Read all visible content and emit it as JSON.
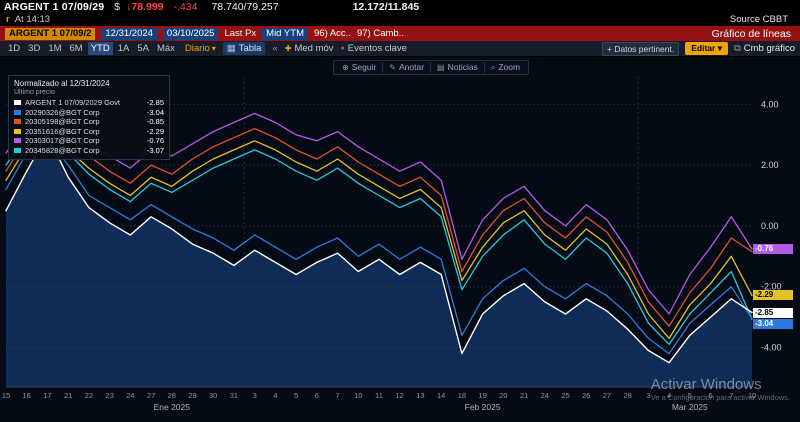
{
  "quote_bar": {
    "security": "ARGENT 1 07/09/29",
    "currency": "$",
    "arrow": "↓",
    "last_price": "78.999",
    "change": "-.434",
    "bid_ask": "78.740/79.257",
    "yield_bid_ask": "12.172/11.845",
    "delay_badge": "r",
    "as_of": "At 14:13",
    "source": "Source CBBT"
  },
  "red_bar": {
    "security_input": "ARGENT 1 07/09/2",
    "date_from": "12/31/2024",
    "date_to": "03/10/2025",
    "px_label": "Last Px",
    "field": "Mid YTM",
    "action_96": "96) Acc..",
    "action_97": "97) Camb..",
    "screen_title": "Gráfico de líneas"
  },
  "toolbar": {
    "tabs": [
      "1D",
      "3D",
      "1M",
      "6M",
      "YTD",
      "1A",
      "5A",
      "Máx"
    ],
    "active_tab": "YTD",
    "period": "Diario",
    "table_label": "Tabla",
    "collapse": "«",
    "mov_avg": "Med móv",
    "key_events": "Eventos clave",
    "related_data": "+ Datos pertinent.",
    "edit_button": "Editar",
    "change_chart": "Cmb gráfico"
  },
  "chart_tools": {
    "items": [
      {
        "icon": "⊕",
        "label": "Seguir"
      },
      {
        "icon": "✎",
        "label": "Anotar"
      },
      {
        "icon": "▤",
        "label": "Noticias"
      },
      {
        "icon": "⌕",
        "label": "Zoom"
      }
    ]
  },
  "legend": {
    "title": "Normalizado al 12/31/2024",
    "subtitle": "Último precio"
  },
  "watermark": {
    "line1": "Activar Windows",
    "line2": "Ve a Configuración para activar Windows."
  },
  "chart_data": {
    "type": "line",
    "title": "Normalizado al 12/31/2024",
    "xlabel": "",
    "ylabel": "",
    "ylim": [
      -5.3,
      4.7
    ],
    "yticks": [
      4,
      2,
      0,
      -2,
      -4
    ],
    "grid": "dotted-horizontal",
    "legend_position": "top-left",
    "x": [
      "15",
      "16",
      "17",
      "21",
      "22",
      "23",
      "24",
      "27",
      "28",
      "29",
      "30",
      "31",
      "3",
      "4",
      "5",
      "6",
      "7",
      "10",
      "11",
      "12",
      "13",
      "14",
      "18",
      "19",
      "20",
      "21",
      "24",
      "25",
      "26",
      "27",
      "28",
      "3",
      "4",
      "5",
      "6",
      "7",
      "10"
    ],
    "months": [
      {
        "label": "Ene 2025",
        "index": 8
      },
      {
        "label": "Feb 2025",
        "index": 23
      },
      {
        "label": "Mar 2025",
        "index": 33
      }
    ],
    "month_breaks": [
      11.5,
      30.5
    ],
    "series": [
      {
        "name": "ARGENT 1 07/09/2029 Govt",
        "color": "#ffffff",
        "width": 1.4,
        "z": 5,
        "fill": "#0e2c55",
        "tag": true,
        "last_label": "-2.85",
        "values": [
          0.5,
          1.8,
          3.0,
          1.6,
          0.6,
          0.1,
          -0.3,
          0.3,
          -0.1,
          -0.6,
          -0.9,
          -1.3,
          -0.8,
          -1.2,
          -1.6,
          -1.2,
          -0.9,
          -1.5,
          -1.1,
          -1.6,
          -1.2,
          -1.6,
          -4.2,
          -2.9,
          -2.3,
          -1.9,
          -2.5,
          -2.9,
          -2.4,
          -2.8,
          -3.4,
          -4.1,
          -4.5,
          -3.6,
          -3.0,
          -2.4,
          -2.85
        ]
      },
      {
        "name": "20290326@BGT Corp",
        "color": "#2e7bdf",
        "width": 1.3,
        "z": 4,
        "tag": true,
        "last_label": "-3.04",
        "values": [
          1.2,
          2.4,
          2.9,
          2.0,
          1.0,
          0.6,
          0.2,
          0.7,
          0.3,
          -0.1,
          -0.4,
          -0.8,
          -0.3,
          -0.7,
          -1.1,
          -0.7,
          -0.4,
          -1.0,
          -0.6,
          -1.1,
          -0.7,
          -1.1,
          -3.6,
          -2.4,
          -1.8,
          -1.4,
          -2.0,
          -2.4,
          -1.9,
          -2.3,
          -2.9,
          -3.7,
          -4.2,
          -3.2,
          -2.6,
          -2.0,
          -3.04
        ]
      },
      {
        "name": "20305198@BGT Corp",
        "color": "#e0512e",
        "width": 1.3,
        "z": 1,
        "tag": false,
        "last_label": "-0.85",
        "values": [
          1.8,
          2.9,
          3.5,
          2.9,
          2.3,
          1.8,
          1.4,
          2.0,
          1.7,
          2.2,
          2.6,
          2.9,
          3.2,
          2.9,
          2.5,
          2.2,
          2.6,
          2.1,
          1.7,
          1.3,
          1.6,
          1.0,
          -1.5,
          -0.3,
          0.5,
          0.9,
          0.1,
          -0.4,
          0.3,
          -0.2,
          -1.2,
          -2.5,
          -3.3,
          -2.2,
          -1.4,
          -0.4,
          -0.85
        ]
      },
      {
        "name": "20351616@BGT Corp",
        "color": "#e6c229",
        "width": 1.3,
        "z": 2,
        "tag": true,
        "last_label": "-2.29",
        "values": [
          1.5,
          2.6,
          3.1,
          2.5,
          1.9,
          1.4,
          1.0,
          1.6,
          1.3,
          1.8,
          2.2,
          2.5,
          2.8,
          2.5,
          2.1,
          1.8,
          2.2,
          1.7,
          1.3,
          0.9,
          1.2,
          0.6,
          -1.8,
          -0.7,
          0.1,
          0.5,
          -0.3,
          -0.8,
          -0.1,
          -0.6,
          -1.6,
          -2.9,
          -3.7,
          -2.6,
          -1.9,
          -1.0,
          -2.29
        ]
      },
      {
        "name": "20303017@BGT Corp",
        "color": "#b35ce8",
        "width": 1.3,
        "z": 6,
        "tag": true,
        "last_label": "-0.76",
        "values": [
          2.4,
          3.3,
          3.8,
          3.2,
          2.7,
          2.3,
          1.9,
          2.5,
          2.3,
          2.7,
          3.1,
          3.4,
          3.7,
          3.4,
          3.0,
          2.8,
          3.1,
          2.6,
          2.2,
          1.8,
          2.1,
          1.5,
          -1.1,
          0.2,
          0.9,
          1.3,
          0.5,
          0.0,
          0.7,
          0.2,
          -0.8,
          -2.1,
          -2.9,
          -1.6,
          -0.7,
          0.3,
          -0.76
        ]
      },
      {
        "name": "20345828@BGT Corp",
        "color": "#25c9da",
        "width": 1.3,
        "z": 3,
        "tag": false,
        "last_label": "-3.07",
        "values": [
          2.0,
          3.0,
          3.3,
          2.4,
          1.7,
          1.2,
          0.8,
          1.4,
          1.1,
          1.5,
          1.9,
          2.2,
          2.5,
          2.2,
          1.8,
          1.5,
          1.9,
          1.4,
          1.0,
          0.6,
          0.9,
          0.3,
          -2.1,
          -1.0,
          -0.3,
          0.2,
          -0.6,
          -1.1,
          -0.4,
          -0.9,
          -1.9,
          -3.2,
          -3.9,
          -2.9,
          -2.2,
          -1.5,
          -3.07
        ]
      }
    ]
  }
}
